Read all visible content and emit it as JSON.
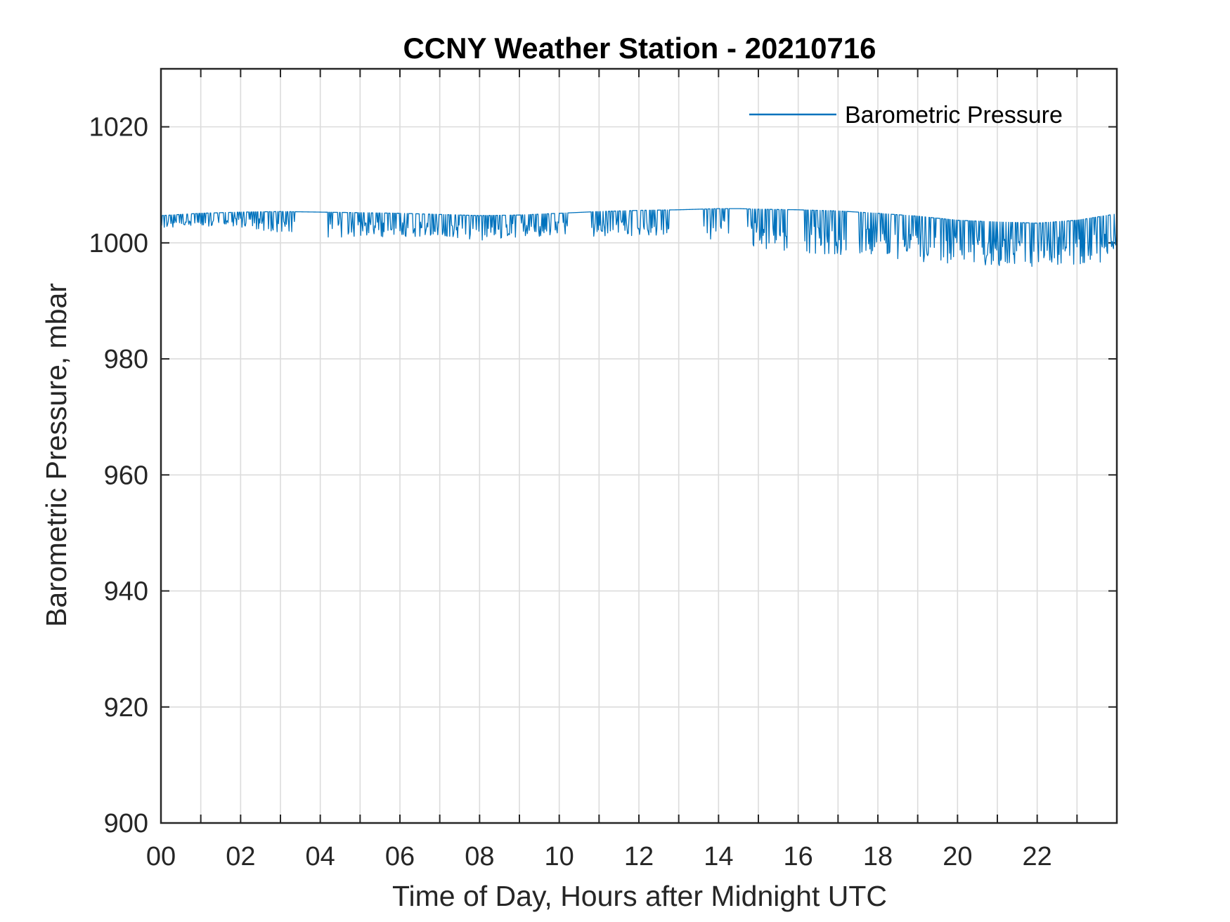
{
  "chart_data": {
    "type": "line",
    "title": "CCNY Weather Station - 20210716",
    "xlabel": "Time of Day, Hours after Midnight UTC",
    "ylabel": "Barometric Pressure, mbar",
    "xlim": [
      0,
      24
    ],
    "ylim": [
      900,
      1030
    ],
    "x_ticks": [
      0,
      2,
      4,
      6,
      8,
      10,
      12,
      14,
      16,
      18,
      20,
      22
    ],
    "x_tick_labels": [
      "00",
      "02",
      "04",
      "06",
      "08",
      "10",
      "12",
      "14",
      "16",
      "18",
      "20",
      "22"
    ],
    "x_minor_ticks": [
      1,
      3,
      5,
      7,
      9,
      11,
      13,
      15,
      17,
      19,
      21,
      23
    ],
    "y_ticks": [
      900,
      920,
      940,
      960,
      980,
      1000,
      1020
    ],
    "y_tick_labels": [
      "900",
      "920",
      "940",
      "960",
      "980",
      "1000",
      "1020"
    ],
    "grid": true,
    "legend_position": "top-right",
    "series": [
      {
        "name": "Barometric Pressure",
        "color": "#0072BD",
        "baseline": {
          "x": [
            0,
            1,
            2,
            3,
            4,
            5,
            6,
            7,
            8,
            9,
            10,
            11,
            12,
            13,
            14,
            14.5,
            15,
            16,
            17,
            18,
            19,
            20,
            21,
            22,
            23,
            24
          ],
          "y": [
            1004.7,
            1005.1,
            1005.3,
            1005.4,
            1005.3,
            1005.2,
            1005.1,
            1004.9,
            1004.7,
            1004.8,
            1005.1,
            1005.4,
            1005.6,
            1005.7,
            1005.9,
            1005.9,
            1005.8,
            1005.7,
            1005.5,
            1005.1,
            1004.6,
            1003.9,
            1003.6,
            1003.4,
            1003.9,
            1005.0
          ]
        },
        "dropout_min": {
          "x": [
            0,
            1,
            2,
            3,
            4,
            5,
            6,
            7,
            8,
            9,
            10,
            11,
            12,
            13,
            14,
            15,
            16,
            17,
            18,
            19,
            20,
            21,
            22,
            23,
            24
          ],
          "y": [
            1002.5,
            1002.8,
            1002.7,
            1001.6,
            1001.0,
            1000.9,
            1001.0,
            1001.0,
            1000.4,
            1000.8,
            1001.0,
            1001.0,
            1001.3,
            1001.2,
            1000.2,
            999.0,
            998.3,
            997.6,
            997.6,
            996.8,
            996.4,
            996.0,
            995.9,
            996.2,
            996.9
          ]
        },
        "gap_ranges": [
          [
            3.4,
            4.15
          ],
          [
            10.25,
            10.8
          ],
          [
            12.8,
            13.15
          ],
          [
            13.15,
            13.6
          ],
          [
            14.3,
            14.7
          ],
          [
            15.75,
            16.15
          ],
          [
            17.25,
            17.5
          ]
        ]
      }
    ]
  }
}
